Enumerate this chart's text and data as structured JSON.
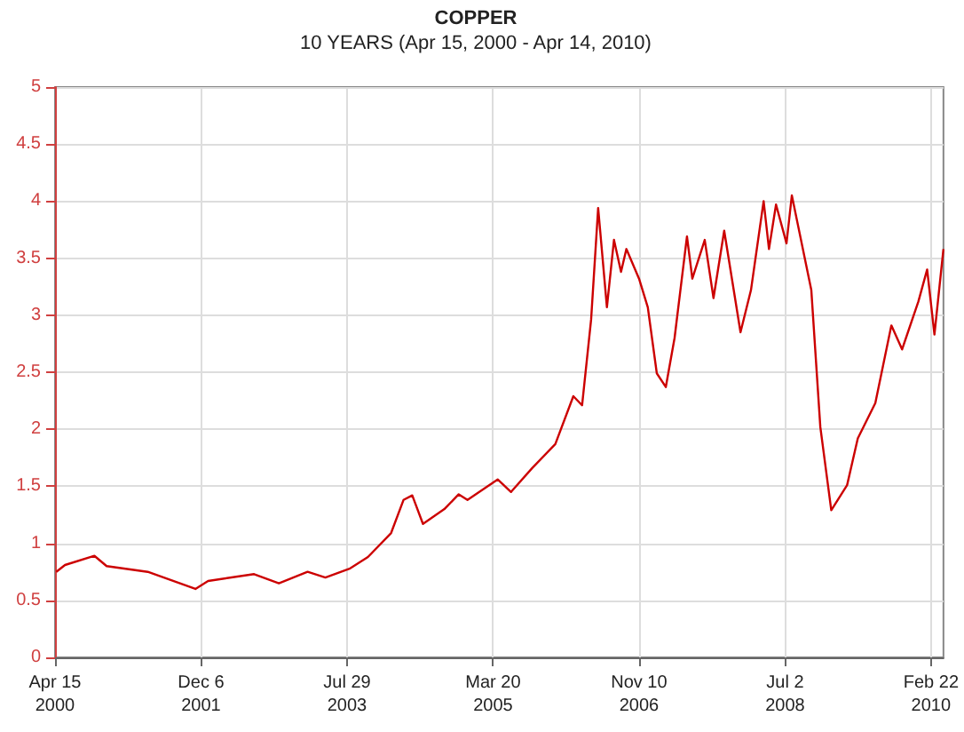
{
  "chart_data": {
    "type": "line",
    "title": "COPPER",
    "subtitle": "10 YEARS (Apr 15, 2000 - Apr 14, 2010)",
    "x": [
      "2000-04-20",
      "2000-05-26",
      "2000-09-24",
      "2000-11-13",
      "2001-05-01",
      "2001-11-13",
      "2002-01-04",
      "2002-07-12",
      "2002-10-22",
      "2003-02-17",
      "2003-05-01",
      "2003-08-11",
      "2003-10-23",
      "2004-01-26",
      "2004-03-17",
      "2004-04-22",
      "2004-06-05",
      "2004-09-01",
      "2004-10-30",
      "2004-12-05",
      "2005-04-08",
      "2005-06-02",
      "2005-08-28",
      "2005-12-01",
      "2006-02-13",
      "2006-03-21",
      "2006-04-27",
      "2006-05-26",
      "2006-07-01",
      "2006-07-30",
      "2006-08-28",
      "2006-09-19",
      "2006-11-10",
      "2006-12-16",
      "2007-01-22",
      "2007-02-28",
      "2007-04-05",
      "2007-05-26",
      "2007-06-17",
      "2007-08-07",
      "2007-09-12",
      "2007-10-26",
      "2008-01-01",
      "2008-02-13",
      "2008-04-05",
      "2008-04-27",
      "2008-05-26",
      "2008-07-08",
      "2008-07-30",
      "2008-10-18",
      "2008-11-24",
      "2009-01-08",
      "2009-03-14",
      "2009-04-27",
      "2009-07-08",
      "2009-09-12",
      "2009-10-26",
      "2010-01-01",
      "2010-02-06",
      "2010-03-08",
      "2010-04-04",
      "2010-04-14"
    ],
    "series": [
      {
        "color": "#cc0000",
        "values": [
          0.75,
          0.81,
          0.89,
          0.8,
          0.75,
          0.6,
          0.67,
          0.73,
          0.65,
          0.75,
          0.7,
          0.78,
          0.88,
          1.09,
          1.38,
          1.42,
          1.17,
          1.3,
          1.43,
          1.38,
          1.56,
          1.45,
          1.66,
          1.87,
          2.29,
          2.21,
          2.96,
          3.94,
          3.07,
          3.66,
          3.38,
          3.58,
          3.32,
          3.07,
          2.49,
          2.37,
          2.8,
          3.69,
          3.32,
          3.66,
          3.15,
          3.74,
          2.85,
          3.22,
          4.0,
          3.58,
          3.97,
          3.63,
          4.05,
          3.22,
          2.02,
          1.29,
          1.51,
          1.92,
          2.23,
          2.91,
          2.7,
          3.12,
          3.4,
          2.83,
          3.38,
          3.58
        ]
      }
    ],
    "xlim": [
      "2000-04-15",
      "2010-04-14"
    ],
    "xticks": [
      {
        "value": "2000-04-15",
        "label": "Apr 15\n2000"
      },
      {
        "value": "2001-12-06",
        "label": "Dec 6\n2001"
      },
      {
        "value": "2003-07-29",
        "label": "Jul 29\n2003"
      },
      {
        "value": "2005-03-20",
        "label": "Mar 20\n2005"
      },
      {
        "value": "2006-11-10",
        "label": "Nov 10\n2006"
      },
      {
        "value": "2008-07-02",
        "label": "Jul 2\n2008"
      },
      {
        "value": "2010-02-22",
        "label": "Feb 22\n2010"
      }
    ],
    "ylim": [
      0,
      5
    ],
    "yticks": [
      0,
      0.5,
      1,
      1.5,
      2,
      2.5,
      3,
      3.5,
      4,
      4.5,
      5
    ],
    "grid": true,
    "marker": "none",
    "line_style": "solid"
  }
}
